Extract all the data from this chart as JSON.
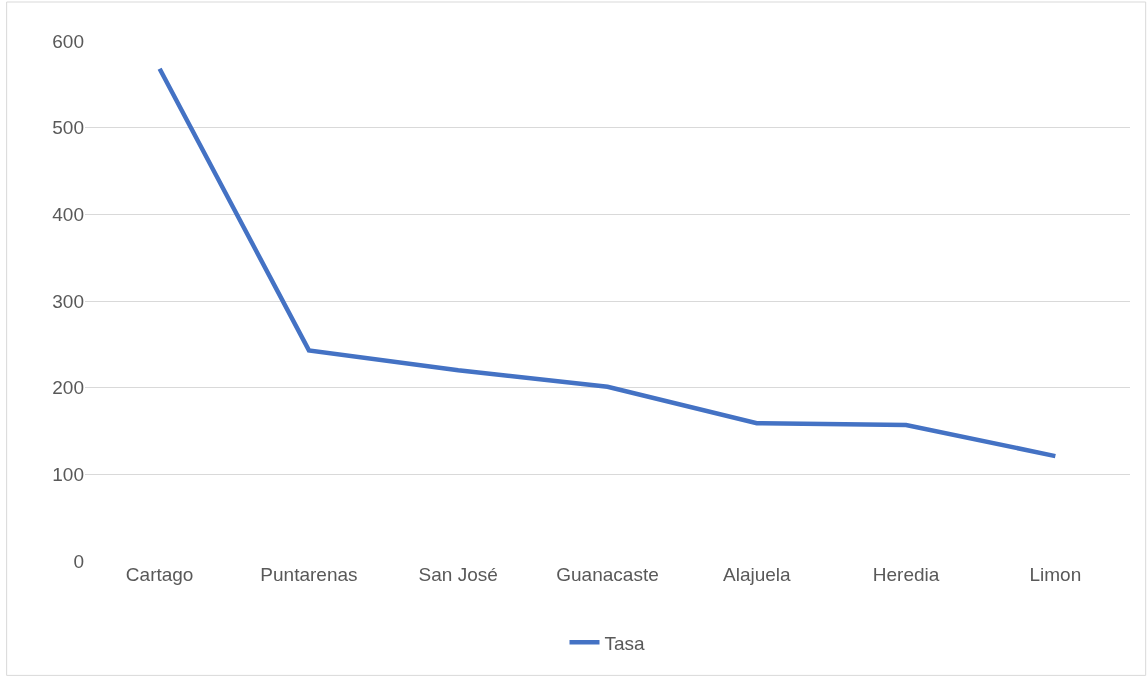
{
  "chart_data": {
    "type": "line",
    "categories": [
      "Cartago",
      "Puntarenas",
      "San José",
      "Guanacaste",
      "Alajuela",
      "Heredia",
      "Limon"
    ],
    "series": [
      {
        "name": "Tasa",
        "color": "#4472c4",
        "values": [
          568,
          243,
          220,
          201,
          159,
          157,
          121
        ]
      }
    ],
    "ylim": [
      0,
      600
    ],
    "yticks": [
      0,
      100,
      200,
      300,
      400,
      500,
      600
    ],
    "grid": "y",
    "legend": "bottom",
    "marker": "none",
    "line_style": "solid"
  }
}
